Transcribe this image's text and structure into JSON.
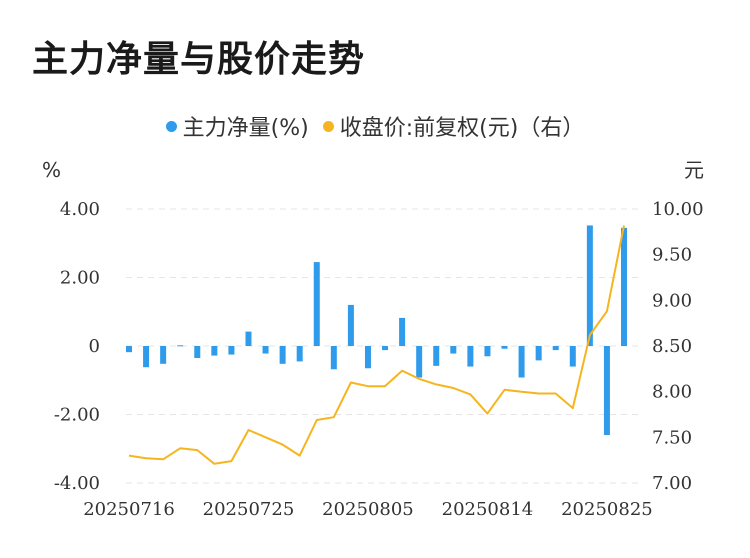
{
  "title": "主力净量与股价走势",
  "legend": {
    "net_label": "主力净量(%)",
    "price_label": "收盘价:前复权(元)（右）"
  },
  "colors": {
    "net": "#2f9bea",
    "price": "#f6b51e",
    "grid": "#e6e6e6"
  },
  "chart_data": {
    "type": "bar",
    "title": "主力净量与股价走势",
    "left_axis": {
      "unit": "%",
      "ylim": [
        -4,
        4
      ],
      "ticks": [
        "4.00",
        "2.00",
        "0",
        "-2.00",
        "-4.00"
      ]
    },
    "right_axis": {
      "unit": "元",
      "ylim": [
        7.0,
        10.0
      ],
      "ticks": [
        "10.00",
        "9.50",
        "9.00",
        "8.50",
        "8.00",
        "7.50",
        "7.00"
      ]
    },
    "x_tick_labels": [
      "20250716",
      "20250725",
      "20250805",
      "20250814",
      "20250825"
    ],
    "x_tick_index": [
      0,
      7,
      14,
      21,
      28
    ],
    "grid": true,
    "legend_position": "top-center",
    "series": [
      {
        "name": "主力净量(%)",
        "type": "bar",
        "axis": "left",
        "values": [
          -0.18,
          -0.62,
          -0.52,
          0.02,
          -0.35,
          -0.28,
          -0.25,
          0.42,
          -0.22,
          -0.52,
          -0.45,
          2.45,
          -0.68,
          1.2,
          -0.65,
          -0.12,
          0.82,
          -0.92,
          -0.58,
          -0.22,
          -0.6,
          -0.3,
          -0.08,
          -0.92,
          -0.42,
          -0.12,
          -0.6,
          3.52,
          -2.6,
          3.45
        ]
      },
      {
        "name": "收盘价:前复权(元)（右）",
        "type": "line",
        "axis": "right",
        "values": [
          7.3,
          7.27,
          7.26,
          7.38,
          7.36,
          7.21,
          7.24,
          7.58,
          7.5,
          7.42,
          7.3,
          7.69,
          7.72,
          8.1,
          8.06,
          8.06,
          8.23,
          8.14,
          8.08,
          8.04,
          7.97,
          7.76,
          8.02,
          8.0,
          7.98,
          7.98,
          7.82,
          8.62,
          8.88,
          9.82
        ]
      }
    ]
  }
}
